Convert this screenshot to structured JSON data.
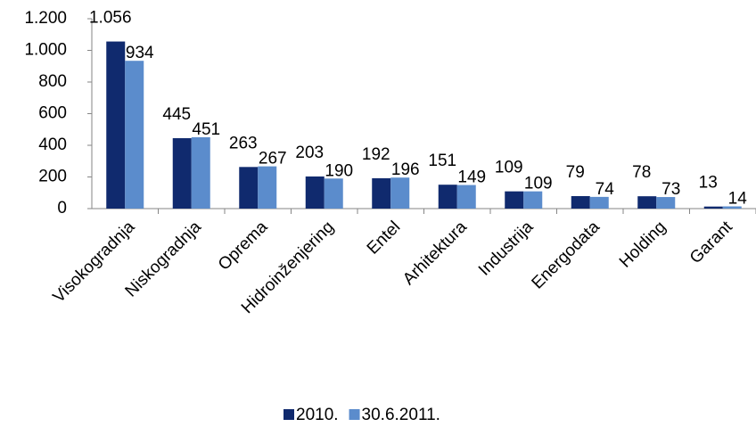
{
  "chart_data": {
    "type": "bar",
    "categories": [
      "Visokogradnja",
      "Niskogradnja",
      "Oprema",
      "Hidroinženjering",
      "Entel",
      "Arhitektura",
      "Industrija",
      "Energodata",
      "Holding",
      "Garant"
    ],
    "series": [
      {
        "name": "2010.",
        "color": "#102a6e",
        "values": [
          1056,
          445,
          263,
          203,
          192,
          151,
          109,
          79,
          78,
          13
        ],
        "value_labels": [
          "1.056",
          "445",
          "263",
          "203",
          "192",
          "151",
          "109",
          "79",
          "78",
          "13"
        ]
      },
      {
        "name": "30.6.2011.",
        "color": "#5b8ccc",
        "values": [
          934,
          451,
          267,
          190,
          196,
          149,
          109,
          74,
          73,
          14
        ],
        "value_labels": [
          "934",
          "451",
          "267",
          "190",
          "196",
          "149",
          "109",
          "74",
          "73",
          "14"
        ]
      }
    ],
    "ylim": [
      0,
      1200
    ],
    "yticks": [
      0,
      200,
      400,
      600,
      800,
      {
        "value": 1000,
        "label": "1.000"
      },
      {
        "value": 1200,
        "label": "1.200"
      }
    ],
    "legend": "bottom"
  }
}
